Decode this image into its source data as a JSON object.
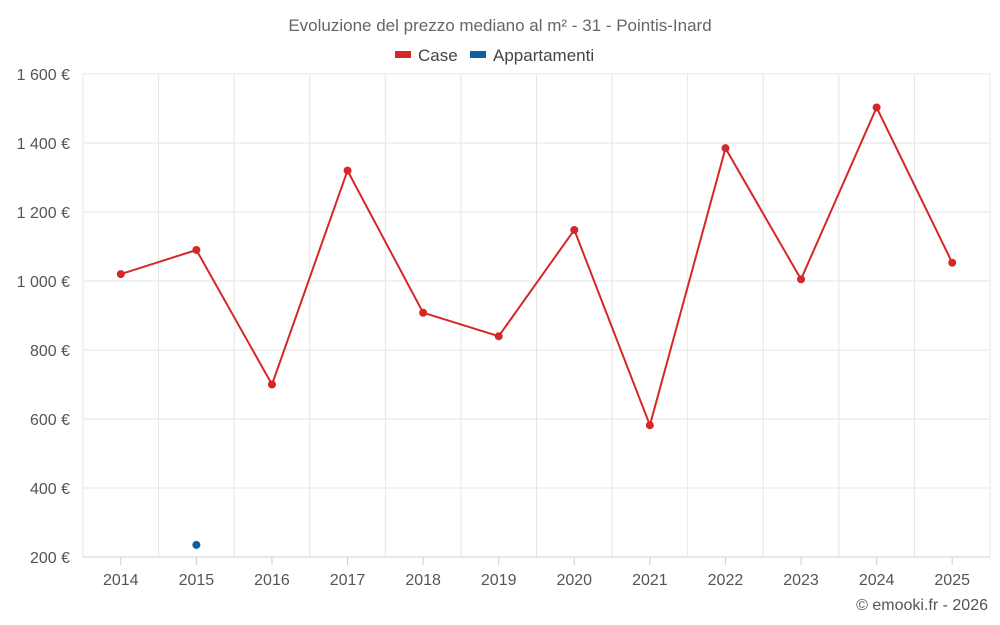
{
  "chart_data": {
    "type": "line",
    "title": "Evoluzione del prezzo mediano al m² - 31 - Pointis-Inard",
    "categories": [
      "2014",
      "2015",
      "2016",
      "2017",
      "2018",
      "2019",
      "2020",
      "2021",
      "2022",
      "2023",
      "2024",
      "2025"
    ],
    "series": [
      {
        "name": "Case",
        "color": "#d62728",
        "values": [
          1020,
          1090,
          700,
          1320,
          908,
          840,
          1148,
          582,
          1385,
          1005,
          1503,
          1053
        ]
      },
      {
        "name": "Appartamenti",
        "color": "#0b5fa5",
        "values": [
          null,
          235,
          null,
          null,
          null,
          null,
          null,
          null,
          null,
          null,
          null,
          null
        ]
      }
    ],
    "ylim": [
      200,
      1600
    ],
    "yticks": [
      200,
      400,
      600,
      800,
      1000,
      1200,
      1400,
      1600
    ],
    "ytick_labels": [
      "200 €",
      "400 €",
      "600 €",
      "800 €",
      "1 000 €",
      "1 200 €",
      "1 400 €",
      "1 600 €"
    ],
    "xlabel": "",
    "ylabel": "",
    "grid": true,
    "legend_position": "top-center"
  },
  "credit": "© emooki.fr - 2026"
}
